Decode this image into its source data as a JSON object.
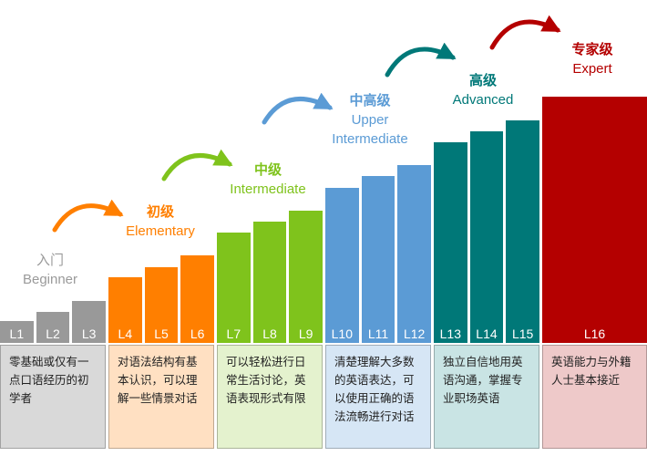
{
  "groups": [
    {
      "id": "beginner",
      "title_cn": "入门",
      "title_en": "Beginner",
      "color": "#999999",
      "light": "#d9d9d9",
      "levels": [
        "L1",
        "L2",
        "L3"
      ],
      "description": "零基础或仅有一点口语经历的初学者"
    },
    {
      "id": "elementary",
      "title_cn": "初级",
      "title_en": "Elementary",
      "color": "#ff7f00",
      "light": "#ffe0c2",
      "levels": [
        "L4",
        "L5",
        "L6"
      ],
      "description": "对语法结构有基本认识，可以理解一些情景对话"
    },
    {
      "id": "intermediate",
      "title_cn": "中级",
      "title_en": "Intermediate",
      "color": "#7fc31c",
      "light": "#e4f2ce",
      "levels": [
        "L7",
        "L8",
        "L9"
      ],
      "description": "可以轻松进行日常生活讨论，英语表现形式有限"
    },
    {
      "id": "upper_intermediate",
      "title_cn": "中高级",
      "title_en": "Upper Intermediate",
      "color": "#5b9bd5",
      "light": "#d6e6f5",
      "levels": [
        "L10",
        "L11",
        "L12"
      ],
      "description": "清楚理解大多数的英语表达，可以使用正确的语法流畅进行对话"
    },
    {
      "id": "advanced",
      "title_cn": "高级",
      "title_en": "Advanced",
      "color": "#007878",
      "light": "#c9e4e4",
      "levels": [
        "L13",
        "L14",
        "L15"
      ],
      "description": "独立自信地用英语沟通，掌握专业职场英语"
    },
    {
      "id": "expert",
      "title_cn": "专家级",
      "title_en": "Expert",
      "color": "#b40000",
      "light": "#eec9c9",
      "levels": [
        "L16"
      ],
      "description": "英语能力与外籍人士基本接近"
    }
  ]
}
